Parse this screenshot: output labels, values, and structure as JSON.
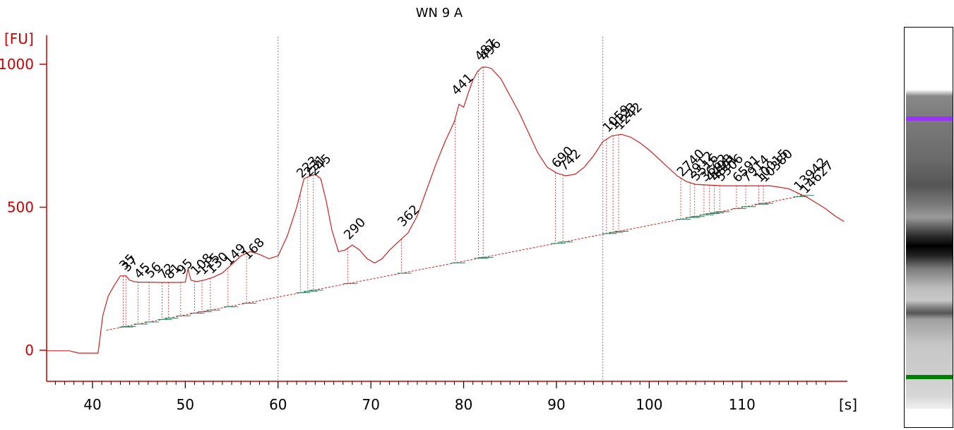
{
  "title": "WN 9 A",
  "chart_data": {
    "type": "line",
    "title": "WN 9 A",
    "xlabel": "[s]",
    "ylabel": "[FU]",
    "xlim": [
      35,
      152
    ],
    "ylim": [
      -110,
      1100
    ],
    "x_ticks": [
      40,
      50,
      60,
      70,
      80,
      90,
      100,
      110
    ],
    "x_tick_labels": [
      "40",
      "50",
      "60",
      "70",
      "80",
      "90",
      "100",
      "110"
    ],
    "y_ticks": [
      0,
      500,
      1000
    ],
    "y_tick_labels": [
      "0",
      "500",
      "1000"
    ],
    "grid": false,
    "colors": {
      "trace": "#cc2222",
      "axis": "#cc0000",
      "region_marker": "#7777cc",
      "baseline_segment": "#2e7d5e",
      "lower_marker": "#1a7a1a",
      "upper_marker": "#8844ff"
    },
    "series": [
      {
        "x": [
          35,
          37.5,
          38.5,
          40.6,
          41.1,
          41.7,
          42.4,
          43.0,
          43.6,
          44.0,
          44.5,
          45.0,
          46.0,
          47.5,
          49.0,
          50.0,
          50.3,
          50.6,
          51.2,
          52.0,
          53.0,
          54.0,
          55.0,
          56.0,
          57.0,
          58.0,
          59.0,
          60.0,
          61.0,
          62.0,
          62.8,
          63.5,
          64.0,
          64.6,
          65.2,
          65.8,
          66.5,
          67.2,
          68.0,
          68.8,
          69.6,
          70.4,
          71.2,
          72.0,
          73.0,
          74.0,
          75.0,
          76.0,
          77.0,
          78.0,
          79.0,
          79.5,
          80.0,
          80.5,
          81.0,
          81.5,
          82.0,
          82.5,
          83.0,
          84.0,
          85.0,
          86.0,
          87.0,
          88.0,
          89.0,
          90.0,
          91.0,
          92.0,
          93.0,
          94.0,
          95.0,
          96.0,
          97.0,
          98.0,
          99.0,
          100.0,
          101.0,
          102.0,
          103.0,
          104.0,
          105.0,
          106.0,
          108.0,
          110.0,
          112.0,
          113.0,
          114.0,
          115.0,
          116.0,
          117.0,
          118.0,
          119.0,
          120.0,
          121.0
        ],
        "y": [
          -2,
          -2,
          -10,
          -10,
          120,
          190,
          230,
          260,
          260,
          245,
          240,
          238,
          238,
          237,
          237,
          238,
          285,
          245,
          240,
          245,
          255,
          270,
          300,
          330,
          345,
          335,
          320,
          330,
          400,
          500,
          600,
          610,
          615,
          600,
          520,
          420,
          345,
          350,
          368,
          350,
          320,
          305,
          320,
          350,
          380,
          410,
          470,
          560,
          650,
          730,
          800,
          860,
          850,
          900,
          945,
          975,
          990,
          990,
          985,
          950,
          890,
          830,
          760,
          690,
          640,
          620,
          610,
          615,
          640,
          680,
          730,
          750,
          755,
          745,
          725,
          700,
          670,
          640,
          610,
          590,
          580,
          578,
          575,
          575,
          575,
          575,
          570,
          565,
          550,
          535,
          515,
          495,
          470,
          450
        ]
      }
    ],
    "region_markers_x": [
      60,
      95
    ],
    "peak_labels": [
      {
        "x": 43.3,
        "y": 268,
        "text": "35",
        "color": "#1a7a1a"
      },
      {
        "x": 43.6,
        "y": 262,
        "text": "37"
      },
      {
        "x": 44.9,
        "y": 238,
        "text": "45"
      },
      {
        "x": 46.1,
        "y": 240,
        "text": "56"
      },
      {
        "x": 47.5,
        "y": 236,
        "text": "72"
      },
      {
        "x": 48.2,
        "y": 236,
        "text": "81"
      },
      {
        "x": 49.5,
        "y": 252,
        "text": "95"
      },
      {
        "x": 51.0,
        "y": 250,
        "text": "108"
      },
      {
        "x": 51.8,
        "y": 252,
        "text": "115"
      },
      {
        "x": 52.7,
        "y": 255,
        "text": "130"
      },
      {
        "x": 54.6,
        "y": 285,
        "text": "149"
      },
      {
        "x": 56.6,
        "y": 305,
        "text": "168"
      },
      {
        "x": 62.4,
        "y": 590,
        "text": "223"
      },
      {
        "x": 63.2,
        "y": 595,
        "text": "231"
      },
      {
        "x": 63.8,
        "y": 598,
        "text": "245"
      },
      {
        "x": 67.5,
        "y": 375,
        "text": "290"
      },
      {
        "x": 73.3,
        "y": 420,
        "text": "362"
      },
      {
        "x": 79.1,
        "y": 880,
        "text": "441"
      },
      {
        "x": 81.6,
        "y": 1000,
        "text": "487"
      },
      {
        "x": 82.1,
        "y": 1000,
        "text": "496"
      },
      {
        "x": 89.9,
        "y": 625,
        "text": "690"
      },
      {
        "x": 90.7,
        "y": 615,
        "text": "742"
      },
      {
        "x": 95.4,
        "y": 750,
        "text": "1059"
      },
      {
        "x": 96.1,
        "y": 758,
        "text": "1123"
      },
      {
        "x": 96.7,
        "y": 758,
        "text": "1242"
      },
      {
        "x": 103.4,
        "y": 595,
        "text": "2740"
      },
      {
        "x": 104.4,
        "y": 588,
        "text": "2912"
      },
      {
        "x": 104.9,
        "y": 580,
        "text": "3516"
      },
      {
        "x": 105.9,
        "y": 578,
        "text": "3662"
      },
      {
        "x": 106.5,
        "y": 578,
        "text": "4498"
      },
      {
        "x": 107.0,
        "y": 578,
        "text": "4891"
      },
      {
        "x": 107.6,
        "y": 578,
        "text": "5306"
      },
      {
        "x": 109.4,
        "y": 575,
        "text": "6591"
      },
      {
        "x": 110.4,
        "y": 575,
        "text": "7914"
      },
      {
        "x": 111.8,
        "y": 575,
        "text": "10015",
        "color": "#8844ff"
      },
      {
        "x": 112.3,
        "y": 575,
        "text": "10380",
        "color": "#8844ff"
      },
      {
        "x": 116.0,
        "y": 545,
        "text": "13942"
      },
      {
        "x": 116.7,
        "y": 535,
        "text": "14627"
      }
    ]
  },
  "gel": {
    "lower_marker_color": "#008000",
    "upper_marker_color": "#9933ff"
  }
}
